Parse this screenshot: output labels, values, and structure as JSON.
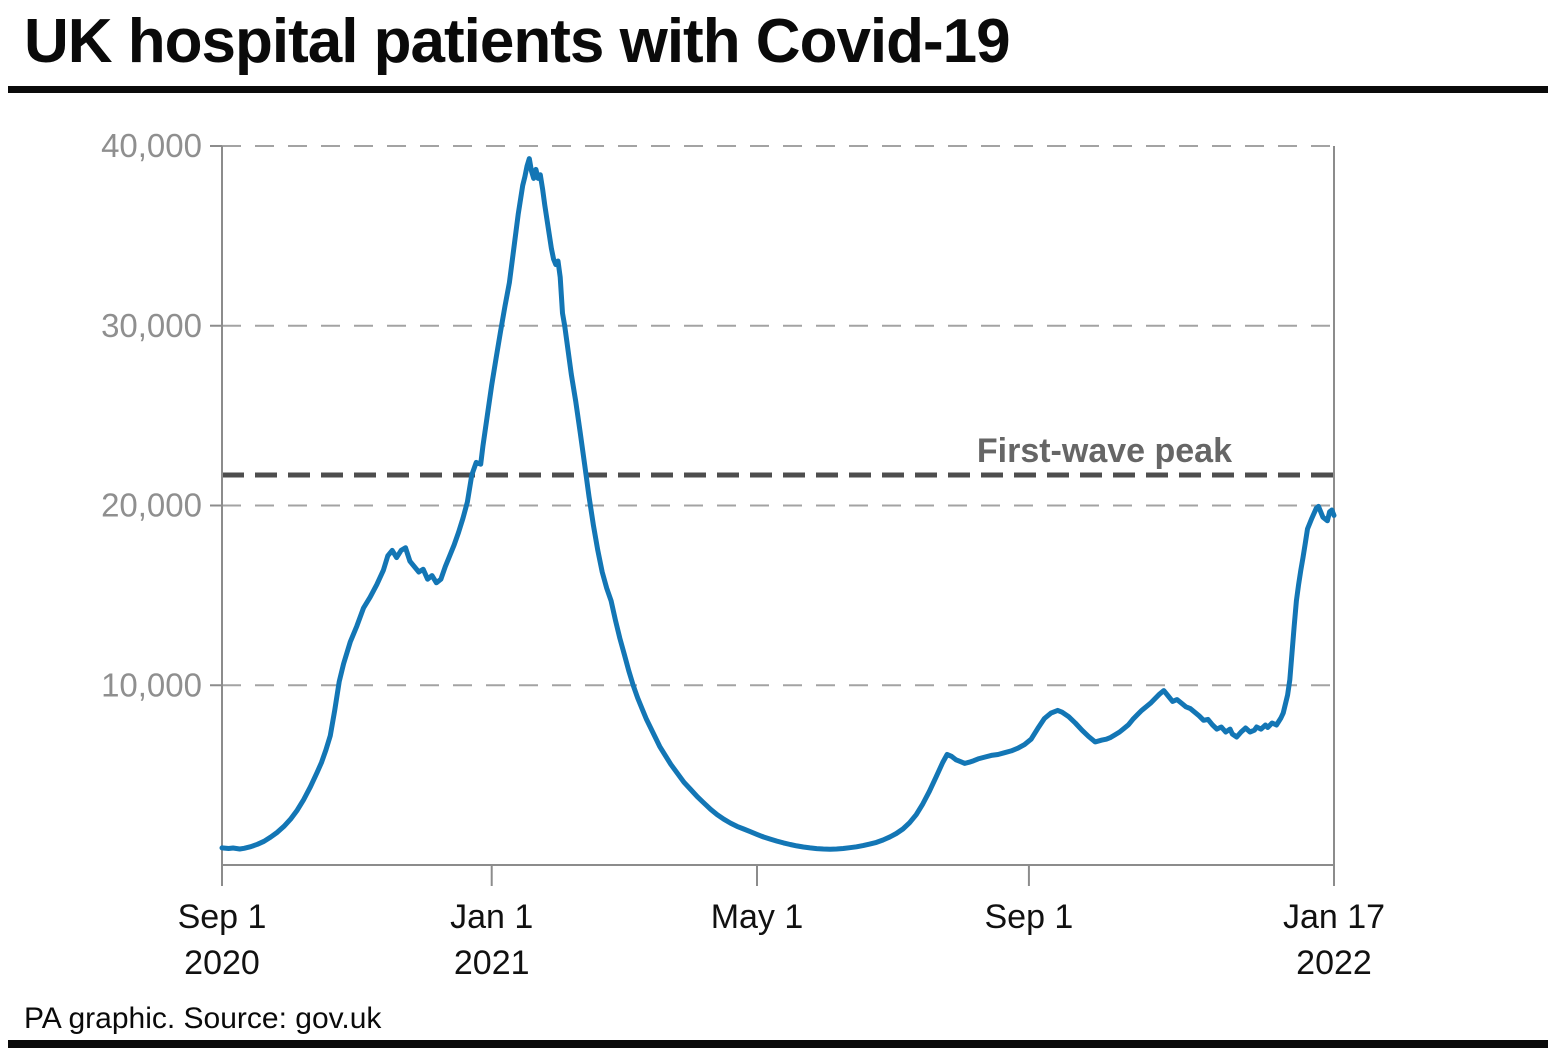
{
  "header": {
    "title": "UK hospital patients with Covid-19"
  },
  "footer": {
    "source": "PA graphic. Source: gov.uk"
  },
  "colors": {
    "series_blue": "#1376b5",
    "grid_gray": "#a3a3a3",
    "axis_gray": "#8c8c8c",
    "reference_dark_gray": "#4d4d4d",
    "reference_label_gray": "#666666",
    "x_label_black": "#111111",
    "y_label_gray": "#8f8f8f"
  },
  "chart_data": {
    "type": "line",
    "title": "UK hospital patients with Covid-19",
    "xlabel": "",
    "ylabel": "",
    "grid": "dashed horizontal gridlines",
    "legend": "none",
    "ylim": [
      0,
      40000
    ],
    "x_domain_days": [
      0,
      503
    ],
    "x_epoch_note": "day 0 = Sep 1 2020, day 503 = Jan 17 2022",
    "xticks": [
      {
        "day": 0,
        "lines": [
          "Sep 1",
          "2020"
        ]
      },
      {
        "day": 122,
        "lines": [
          "Jan 1",
          "2021"
        ]
      },
      {
        "day": 242,
        "lines": [
          "May 1"
        ]
      },
      {
        "day": 365,
        "lines": [
          "Sep 1"
        ]
      },
      {
        "day": 503,
        "lines": [
          "Jan 17",
          "2022"
        ]
      }
    ],
    "yticks": [
      {
        "value": 10000,
        "label": "10,000"
      },
      {
        "value": 20000,
        "label": "20,000"
      },
      {
        "value": 30000,
        "label": "30,000"
      },
      {
        "value": 40000,
        "label": "40,000"
      }
    ],
    "reference_line": {
      "value": 21700,
      "label": "First-wave peak"
    },
    "series": [
      {
        "name": "UK hospital patients with Covid-19",
        "points": [
          [
            0,
            950
          ],
          [
            3,
            920
          ],
          [
            5,
            945
          ],
          [
            8,
            890
          ],
          [
            10,
            930
          ],
          [
            13,
            1020
          ],
          [
            16,
            1150
          ],
          [
            19,
            1320
          ],
          [
            22,
            1550
          ],
          [
            25,
            1820
          ],
          [
            28,
            2150
          ],
          [
            31,
            2550
          ],
          [
            34,
            3050
          ],
          [
            37,
            3650
          ],
          [
            40,
            4350
          ],
          [
            43,
            5150
          ],
          [
            45,
            5700
          ],
          [
            47,
            6400
          ],
          [
            49,
            7200
          ],
          [
            51,
            8600
          ],
          [
            53,
            10200
          ],
          [
            55,
            11200
          ],
          [
            58,
            12400
          ],
          [
            61,
            13300
          ],
          [
            64,
            14300
          ],
          [
            67,
            14900
          ],
          [
            70,
            15600
          ],
          [
            73,
            16400
          ],
          [
            75,
            17200
          ],
          [
            77,
            17500
          ],
          [
            79,
            17100
          ],
          [
            81,
            17500
          ],
          [
            83,
            17650
          ],
          [
            85,
            16900
          ],
          [
            87,
            16600
          ],
          [
            89,
            16300
          ],
          [
            91,
            16450
          ],
          [
            93,
            15900
          ],
          [
            95,
            16100
          ],
          [
            97,
            15700
          ],
          [
            99,
            15900
          ],
          [
            101,
            16600
          ],
          [
            103,
            17200
          ],
          [
            105,
            17800
          ],
          [
            107,
            18500
          ],
          [
            109,
            19300
          ],
          [
            111,
            20200
          ],
          [
            113,
            21700
          ],
          [
            115,
            22400
          ],
          [
            117,
            22300
          ],
          [
            118,
            23300
          ],
          [
            120,
            25000
          ],
          [
            122,
            26700
          ],
          [
            124,
            28200
          ],
          [
            126,
            29700
          ],
          [
            128,
            31100
          ],
          [
            130,
            32400
          ],
          [
            132,
            34300
          ],
          [
            134,
            36200
          ],
          [
            136,
            37800
          ],
          [
            137,
            38300
          ],
          [
            138,
            38900
          ],
          [
            139,
            39300
          ],
          [
            140,
            38600
          ],
          [
            141,
            38200
          ],
          [
            142,
            38700
          ],
          [
            143,
            38200
          ],
          [
            144,
            38400
          ],
          [
            145,
            37600
          ],
          [
            146,
            36700
          ],
          [
            147,
            35900
          ],
          [
            148,
            35100
          ],
          [
            149,
            34300
          ],
          [
            150,
            33700
          ],
          [
            151,
            33400
          ],
          [
            152,
            33600
          ],
          [
            153,
            32700
          ],
          [
            154,
            30700
          ],
          [
            155,
            30000
          ],
          [
            156,
            29100
          ],
          [
            158,
            27300
          ],
          [
            160,
            25800
          ],
          [
            162,
            24100
          ],
          [
            164,
            22300
          ],
          [
            166,
            20500
          ],
          [
            168,
            18900
          ],
          [
            170,
            17500
          ],
          [
            172,
            16300
          ],
          [
            174,
            15400
          ],
          [
            176,
            14700
          ],
          [
            178,
            13600
          ],
          [
            180,
            12600
          ],
          [
            182,
            11700
          ],
          [
            184,
            10800
          ],
          [
            186,
            10000
          ],
          [
            188,
            9300
          ],
          [
            190,
            8700
          ],
          [
            192,
            8100
          ],
          [
            194,
            7600
          ],
          [
            196,
            7100
          ],
          [
            198,
            6600
          ],
          [
            200,
            6200
          ],
          [
            203,
            5600
          ],
          [
            206,
            5100
          ],
          [
            209,
            4600
          ],
          [
            212,
            4200
          ],
          [
            215,
            3800
          ],
          [
            218,
            3450
          ],
          [
            221,
            3100
          ],
          [
            224,
            2800
          ],
          [
            227,
            2550
          ],
          [
            230,
            2330
          ],
          [
            233,
            2150
          ],
          [
            236,
            2000
          ],
          [
            239,
            1850
          ],
          [
            242,
            1700
          ],
          [
            245,
            1560
          ],
          [
            248,
            1440
          ],
          [
            251,
            1330
          ],
          [
            254,
            1230
          ],
          [
            257,
            1140
          ],
          [
            260,
            1060
          ],
          [
            263,
            1000
          ],
          [
            266,
            950
          ],
          [
            269,
            910
          ],
          [
            272,
            890
          ],
          [
            275,
            880
          ],
          [
            278,
            890
          ],
          [
            281,
            920
          ],
          [
            284,
            960
          ],
          [
            287,
            1010
          ],
          [
            290,
            1080
          ],
          [
            293,
            1160
          ],
          [
            296,
            1260
          ],
          [
            299,
            1390
          ],
          [
            302,
            1550
          ],
          [
            305,
            1750
          ],
          [
            308,
            2000
          ],
          [
            311,
            2350
          ],
          [
            314,
            2800
          ],
          [
            317,
            3400
          ],
          [
            320,
            4100
          ],
          [
            323,
            4900
          ],
          [
            326,
            5700
          ],
          [
            328,
            6150
          ],
          [
            330,
            6050
          ],
          [
            332,
            5850
          ],
          [
            334,
            5750
          ],
          [
            336,
            5650
          ],
          [
            338,
            5720
          ],
          [
            340,
            5800
          ],
          [
            342,
            5900
          ],
          [
            345,
            6000
          ],
          [
            348,
            6100
          ],
          [
            351,
            6150
          ],
          [
            354,
            6250
          ],
          [
            357,
            6350
          ],
          [
            360,
            6500
          ],
          [
            363,
            6700
          ],
          [
            366,
            7000
          ],
          [
            369,
            7600
          ],
          [
            372,
            8150
          ],
          [
            375,
            8450
          ],
          [
            378,
            8600
          ],
          [
            380,
            8500
          ],
          [
            383,
            8250
          ],
          [
            386,
            7900
          ],
          [
            389,
            7500
          ],
          [
            392,
            7150
          ],
          [
            395,
            6850
          ],
          [
            398,
            6950
          ],
          [
            400,
            7000
          ],
          [
            402,
            7100
          ],
          [
            404,
            7250
          ],
          [
            406,
            7400
          ],
          [
            408,
            7600
          ],
          [
            410,
            7800
          ],
          [
            412,
            8100
          ],
          [
            414,
            8350
          ],
          [
            416,
            8600
          ],
          [
            418,
            8800
          ],
          [
            420,
            9000
          ],
          [
            422,
            9250
          ],
          [
            424,
            9500
          ],
          [
            426,
            9700
          ],
          [
            428,
            9400
          ],
          [
            430,
            9100
          ],
          [
            432,
            9200
          ],
          [
            434,
            9000
          ],
          [
            436,
            8800
          ],
          [
            438,
            8700
          ],
          [
            440,
            8500
          ],
          [
            442,
            8300
          ],
          [
            444,
            8050
          ],
          [
            446,
            8100
          ],
          [
            448,
            7800
          ],
          [
            450,
            7560
          ],
          [
            452,
            7680
          ],
          [
            454,
            7400
          ],
          [
            456,
            7560
          ],
          [
            457,
            7290
          ],
          [
            459,
            7120
          ],
          [
            461,
            7400
          ],
          [
            463,
            7620
          ],
          [
            465,
            7400
          ],
          [
            467,
            7500
          ],
          [
            468,
            7680
          ],
          [
            470,
            7560
          ],
          [
            472,
            7790
          ],
          [
            473,
            7650
          ],
          [
            475,
            7900
          ],
          [
            477,
            7790
          ],
          [
            479,
            8180
          ],
          [
            480,
            8450
          ],
          [
            482,
            9460
          ],
          [
            483,
            10300
          ],
          [
            484,
            11800
          ],
          [
            485,
            13300
          ],
          [
            486,
            14700
          ],
          [
            487,
            15600
          ],
          [
            488,
            16400
          ],
          [
            489,
            17100
          ],
          [
            490,
            17900
          ],
          [
            491,
            18700
          ],
          [
            493,
            19300
          ],
          [
            495,
            19850
          ],
          [
            496,
            19950
          ],
          [
            498,
            19350
          ],
          [
            500,
            19150
          ],
          [
            501,
            19650
          ],
          [
            502,
            19750
          ],
          [
            503,
            19450
          ]
        ]
      }
    ]
  }
}
